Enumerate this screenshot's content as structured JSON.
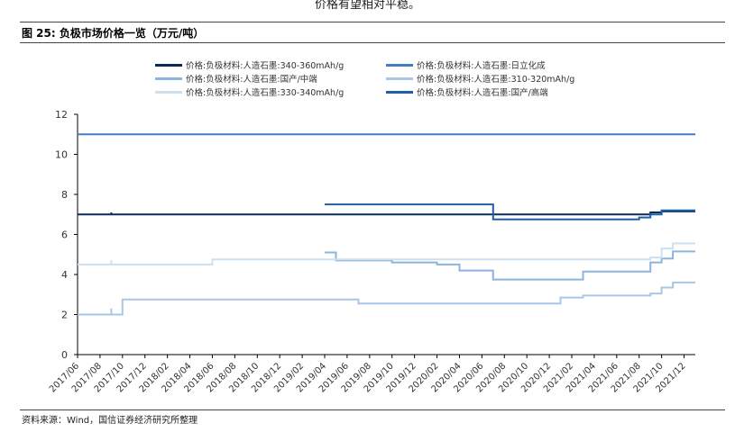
{
  "header": {
    "fragment_text": "价格有望相对平稳。",
    "figure_title": "图 25:  负极市场价格一览（万元/吨）"
  },
  "footer": {
    "source": "资料来源：Wind，国信证券经济研究所整理"
  },
  "colors": {
    "s1": "#0b2a5a",
    "s2": "#3f7fc0",
    "s3": "#8db4de",
    "s4": "#a9c6e6",
    "s5": "#cce0ef",
    "s6": "#1f5fa8"
  },
  "chart_data": {
    "type": "line",
    "title": "负极市场价格一览（万元/吨）",
    "xlabel": "",
    "ylabel": "",
    "ylim": [
      0,
      12
    ],
    "yticks": [
      "0",
      "2",
      "4",
      "6",
      "8",
      "10",
      "12"
    ],
    "x_range": [
      "2017-06",
      "2022-01"
    ],
    "x_tick_labels": [
      "2017/06",
      "2017/08",
      "2017/10",
      "2017/12",
      "2018/02",
      "2018/04",
      "2018/06",
      "2018/08",
      "2018/10",
      "2018/12",
      "2019/02",
      "2019/04",
      "2019/06",
      "2019/08",
      "2019/10",
      "2019/12",
      "2020/02",
      "2020/04",
      "2020/06",
      "2020/08",
      "2020/10",
      "2020/12",
      "2021/02",
      "2021/04",
      "2021/06",
      "2021/08",
      "2021/10",
      "2021/12"
    ],
    "grid": false,
    "legend_position": "top",
    "series": [
      {
        "name": "价格:负极材料:人造石墨:340-360mAh/g",
        "color_key": "s1",
        "points": [
          [
            "2017-06",
            7.0
          ],
          [
            "2017-09",
            7.0
          ],
          [
            "2017-09",
            7.1
          ],
          [
            "2017-09",
            7.0
          ],
          [
            "2020-07",
            7.0
          ],
          [
            "2021-09",
            7.0
          ],
          [
            "2021-09",
            7.1
          ],
          [
            "2021-10",
            7.1
          ],
          [
            "2021-10",
            7.15
          ],
          [
            "2022-01",
            7.15
          ]
        ]
      },
      {
        "name": "价格:负极材料:人造石墨:日立化成",
        "color_key": "s2",
        "points": [
          [
            "2017-06",
            11.0
          ],
          [
            "2022-01",
            11.0
          ]
        ]
      },
      {
        "name": "价格:负极材料:人造石墨:国产/中端",
        "color_key": "s3",
        "points": [
          [
            "2019-04",
            5.1
          ],
          [
            "2019-05",
            5.1
          ],
          [
            "2019-05",
            4.7
          ],
          [
            "2019-10",
            4.7
          ],
          [
            "2019-10",
            4.6
          ],
          [
            "2020-02",
            4.6
          ],
          [
            "2020-02",
            4.5
          ],
          [
            "2020-04",
            4.5
          ],
          [
            "2020-04",
            4.2
          ],
          [
            "2020-07",
            4.2
          ],
          [
            "2020-07",
            3.75
          ],
          [
            "2021-02",
            3.75
          ],
          [
            "2021-02",
            3.75
          ],
          [
            "2021-03",
            3.75
          ],
          [
            "2021-03",
            4.15
          ],
          [
            "2021-09",
            4.15
          ],
          [
            "2021-09",
            4.6
          ],
          [
            "2021-10",
            4.6
          ],
          [
            "2021-10",
            4.8
          ],
          [
            "2021-11",
            4.8
          ],
          [
            "2021-11",
            5.15
          ],
          [
            "2022-01",
            5.15
          ]
        ]
      },
      {
        "name": "价格:负极材料:人造石墨:310-320mAh/g",
        "color_key": "s4",
        "points": [
          [
            "2017-06",
            2.0
          ],
          [
            "2017-09",
            2.0
          ],
          [
            "2017-09",
            2.3
          ],
          [
            "2017-09",
            2.0
          ],
          [
            "2017-10",
            2.0
          ],
          [
            "2017-10",
            2.75
          ],
          [
            "2019-07",
            2.75
          ],
          [
            "2019-07",
            2.55
          ],
          [
            "2021-01",
            2.55
          ],
          [
            "2021-01",
            2.85
          ],
          [
            "2021-03",
            2.85
          ],
          [
            "2021-03",
            2.95
          ],
          [
            "2021-09",
            2.95
          ],
          [
            "2021-09",
            3.05
          ],
          [
            "2021-10",
            3.05
          ],
          [
            "2021-10",
            3.35
          ],
          [
            "2021-11",
            3.35
          ],
          [
            "2021-11",
            3.6
          ],
          [
            "2022-01",
            3.6
          ]
        ]
      },
      {
        "name": "价格:负极材料:人造石墨:330-340mAh/g",
        "color_key": "s5",
        "points": [
          [
            "2017-06",
            4.5
          ],
          [
            "2017-09",
            4.5
          ],
          [
            "2017-09",
            4.7
          ],
          [
            "2017-09",
            4.5
          ],
          [
            "2018-06",
            4.5
          ],
          [
            "2018-06",
            4.75
          ],
          [
            "2021-09",
            4.75
          ],
          [
            "2021-09",
            4.85
          ],
          [
            "2021-10",
            4.85
          ],
          [
            "2021-10",
            5.3
          ],
          [
            "2021-11",
            5.3
          ],
          [
            "2021-11",
            5.55
          ],
          [
            "2022-01",
            5.55
          ]
        ]
      },
      {
        "name": "价格:负极材料:人造石墨:国产/高端",
        "color_key": "s6",
        "points": [
          [
            "2019-04",
            7.5
          ],
          [
            "2020-07",
            7.5
          ],
          [
            "2020-07",
            6.75
          ],
          [
            "2021-08",
            6.75
          ],
          [
            "2021-08",
            6.85
          ],
          [
            "2021-09",
            6.85
          ],
          [
            "2021-09",
            7.0
          ],
          [
            "2021-10",
            7.0
          ],
          [
            "2021-10",
            7.2
          ],
          [
            "2022-01",
            7.2
          ]
        ]
      }
    ]
  }
}
